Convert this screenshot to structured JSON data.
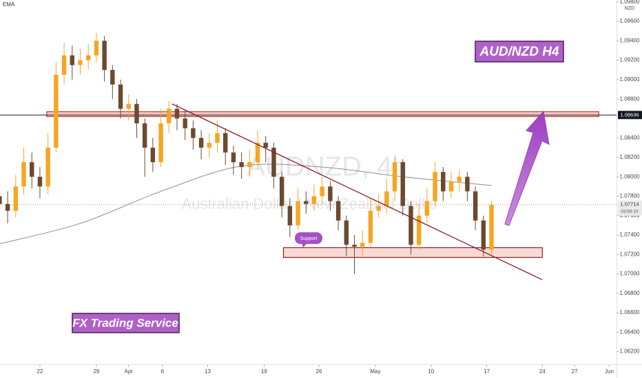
{
  "chart_data": {
    "type": "candlestick",
    "indicator_label": "EMA",
    "currency": "NZD",
    "watermark_symbol": "AUDNZD, 4h",
    "watermark_name": "Australian Dollar / New Zealand Dollar",
    "title": "AUD/NZD H4",
    "footer_label": "FX Trading Service",
    "up_color": "#f5a623",
    "down_color": "#6b4a2e",
    "x": [
      -5,
      -4,
      -3,
      -2,
      -1,
      0,
      1,
      2,
      3,
      4,
      5,
      6,
      7,
      8,
      9,
      10,
      11,
      12,
      13,
      14,
      15,
      16,
      17,
      18,
      19,
      20,
      21,
      22,
      23,
      24,
      25,
      26,
      27,
      28,
      29,
      30,
      31,
      32,
      33,
      34,
      35,
      36,
      37,
      38,
      39,
      40,
      41,
      42,
      43,
      44,
      45,
      46,
      47,
      48,
      49,
      50,
      51,
      52,
      53,
      54,
      55,
      56
    ],
    "open": [
      1.078,
      1.0772,
      1.0765,
      1.079,
      1.0815,
      1.08,
      1.079,
      1.083,
      1.0905,
      1.0925,
      1.0915,
      1.092,
      1.0925,
      1.094,
      1.091,
      1.0895,
      1.087,
      1.0875,
      1.0855,
      1.083,
      1.0815,
      1.0855,
      1.087,
      1.086,
      1.085,
      1.084,
      1.083,
      1.0835,
      1.0845,
      1.0825,
      1.0815,
      1.081,
      1.0815,
      1.0835,
      1.083,
      1.08,
      1.077,
      1.075,
      1.0775,
      1.0772,
      1.078,
      1.079,
      1.0775,
      1.0755,
      1.073,
      1.0728,
      1.0732,
      1.0765,
      1.077,
      1.0785,
      1.0815,
      1.077,
      1.073,
      1.076,
      1.0775,
      1.0805,
      1.0785,
      1.0795,
      1.08,
      1.0785,
      1.0755,
      1.0725
    ],
    "high": [
      1.0792,
      1.0785,
      1.0802,
      1.083,
      1.0825,
      1.081,
      1.0845,
      1.0918,
      1.0938,
      1.0935,
      1.0932,
      1.0937,
      1.0948,
      1.0945,
      1.0915,
      1.09,
      1.0885,
      1.088,
      1.086,
      1.084,
      1.087,
      1.0878,
      1.0875,
      1.0868,
      1.0858,
      1.0848,
      1.0845,
      1.0858,
      1.085,
      1.0832,
      1.0825,
      1.0828,
      1.0848,
      1.0842,
      1.0835,
      1.0805,
      1.0778,
      1.0788,
      1.0785,
      1.0792,
      1.08,
      1.0795,
      1.078,
      1.076,
      1.074,
      1.0745,
      1.0778,
      1.0782,
      1.0798,
      1.082,
      1.0818,
      1.0775,
      1.0772,
      1.0788,
      1.0815,
      1.081,
      1.0805,
      1.0808,
      1.0805,
      1.079,
      1.076,
      1.0775
    ],
    "low": [
      1.076,
      1.0752,
      1.0758,
      1.0782,
      1.0788,
      1.0778,
      1.0782,
      1.0825,
      1.0895,
      1.09,
      1.0905,
      1.091,
      1.0918,
      1.0898,
      1.088,
      1.086,
      1.0858,
      1.084,
      1.08,
      1.0805,
      1.081,
      1.0845,
      1.0848,
      1.0838,
      1.0828,
      1.0818,
      1.082,
      1.0825,
      1.0812,
      1.0802,
      1.0798,
      1.08,
      1.0808,
      1.0815,
      1.0788,
      1.0758,
      1.0738,
      1.0745,
      1.0762,
      1.0765,
      1.0772,
      1.0765,
      1.0745,
      1.0718,
      1.07,
      1.0718,
      1.0728,
      1.0758,
      1.0762,
      1.0775,
      1.076,
      1.072,
      1.0725,
      1.0752,
      1.077,
      1.0775,
      1.0778,
      1.0785,
      1.0775,
      1.0745,
      1.0718,
      1.072
    ],
    "close": [
      1.0772,
      1.0765,
      1.079,
      1.0815,
      1.08,
      1.079,
      1.083,
      1.0905,
      1.0925,
      1.0915,
      1.092,
      1.0925,
      1.094,
      1.091,
      1.0895,
      1.087,
      1.0875,
      1.0855,
      1.083,
      1.0815,
      1.0855,
      1.087,
      1.086,
      1.085,
      1.084,
      1.083,
      1.0835,
      1.0845,
      1.0825,
      1.0815,
      1.081,
      1.0815,
      1.0835,
      1.083,
      1.08,
      1.077,
      1.075,
      1.0775,
      1.0772,
      1.078,
      1.079,
      1.0775,
      1.0755,
      1.073,
      1.0728,
      1.0732,
      1.0765,
      1.077,
      1.0785,
      1.0815,
      1.077,
      1.073,
      1.076,
      1.0775,
      1.0805,
      1.0785,
      1.0795,
      1.08,
      1.0785,
      1.0755,
      1.0725,
      1.0771
    ],
    "ema": {
      "x": [
        -5,
        5,
        15,
        25,
        35,
        45,
        56
      ],
      "values": [
        1.0731,
        1.0752,
        1.0785,
        1.0811,
        1.081,
        1.08,
        1.0791
      ],
      "color": "#8c8c8c"
    },
    "resistance_line": {
      "value": 1.08636,
      "label": "1.08636"
    },
    "last_price": {
      "value": 1.07714,
      "label": "1.07714",
      "countdown": "03:59:10"
    },
    "resistance_zone": {
      "x": [
        0.85,
        69.3
      ],
      "low": 1.0862,
      "high": 1.0867,
      "color": "#f4c7c7"
    },
    "support_zone": {
      "x": [
        30.2,
        62.3
      ],
      "low": 1.0717,
      "high": 1.0727,
      "color": "#f9d9d4",
      "label": "Support"
    },
    "trendline": {
      "x": [
        16.4,
        62.3
      ],
      "values": [
        1.0875,
        1.0694
      ],
      "color": "#8b1a2b"
    },
    "xlim": [
      -4.95,
      71.5
    ],
    "ylim": [
      1.0607,
      1.0982
    ],
    "xticks": [
      {
        "value": 0,
        "label": "22"
      },
      {
        "value": 7,
        "label": "29"
      },
      {
        "value": 11,
        "label": "Apr"
      },
      {
        "value": 15.2,
        "label": "6"
      },
      {
        "value": 20.8,
        "label": "13"
      },
      {
        "value": 27.8,
        "label": "19"
      },
      {
        "value": 34.6,
        "label": "26"
      },
      {
        "value": 41.6,
        "label": "May"
      },
      {
        "value": 48.5,
        "label": "10"
      },
      {
        "value": 55.4,
        "label": "17"
      },
      {
        "value": 62.3,
        "label": "24"
      },
      {
        "value": 66.3,
        "label": "27"
      },
      {
        "value": 70.6,
        "label": "Jun"
      }
    ],
    "yticks": [
      {
        "value": 1.098,
        "label": "1.09800"
      },
      {
        "value": 1.096,
        "label": "1.09600"
      },
      {
        "value": 1.094,
        "label": "1.09400"
      },
      {
        "value": 1.092,
        "label": "1.09200"
      },
      {
        "value": 1.09,
        "label": "1.09000"
      },
      {
        "value": 1.088,
        "label": "1.08800"
      },
      {
        "value": 1.084,
        "label": "1.08400"
      },
      {
        "value": 1.082,
        "label": "1.08200"
      },
      {
        "value": 1.08,
        "label": "1.08000"
      },
      {
        "value": 1.078,
        "label": "1.07800"
      },
      {
        "value": 1.076,
        "label": "1.07600"
      },
      {
        "value": 1.074,
        "label": "1.07400"
      },
      {
        "value": 1.072,
        "label": "1.07200"
      },
      {
        "value": 1.07,
        "label": "1.07000"
      },
      {
        "value": 1.068,
        "label": "1.06800"
      },
      {
        "value": 1.066,
        "label": "1.06600"
      },
      {
        "value": 1.064,
        "label": "1.06400"
      },
      {
        "value": 1.062,
        "label": "1.06200"
      }
    ]
  }
}
